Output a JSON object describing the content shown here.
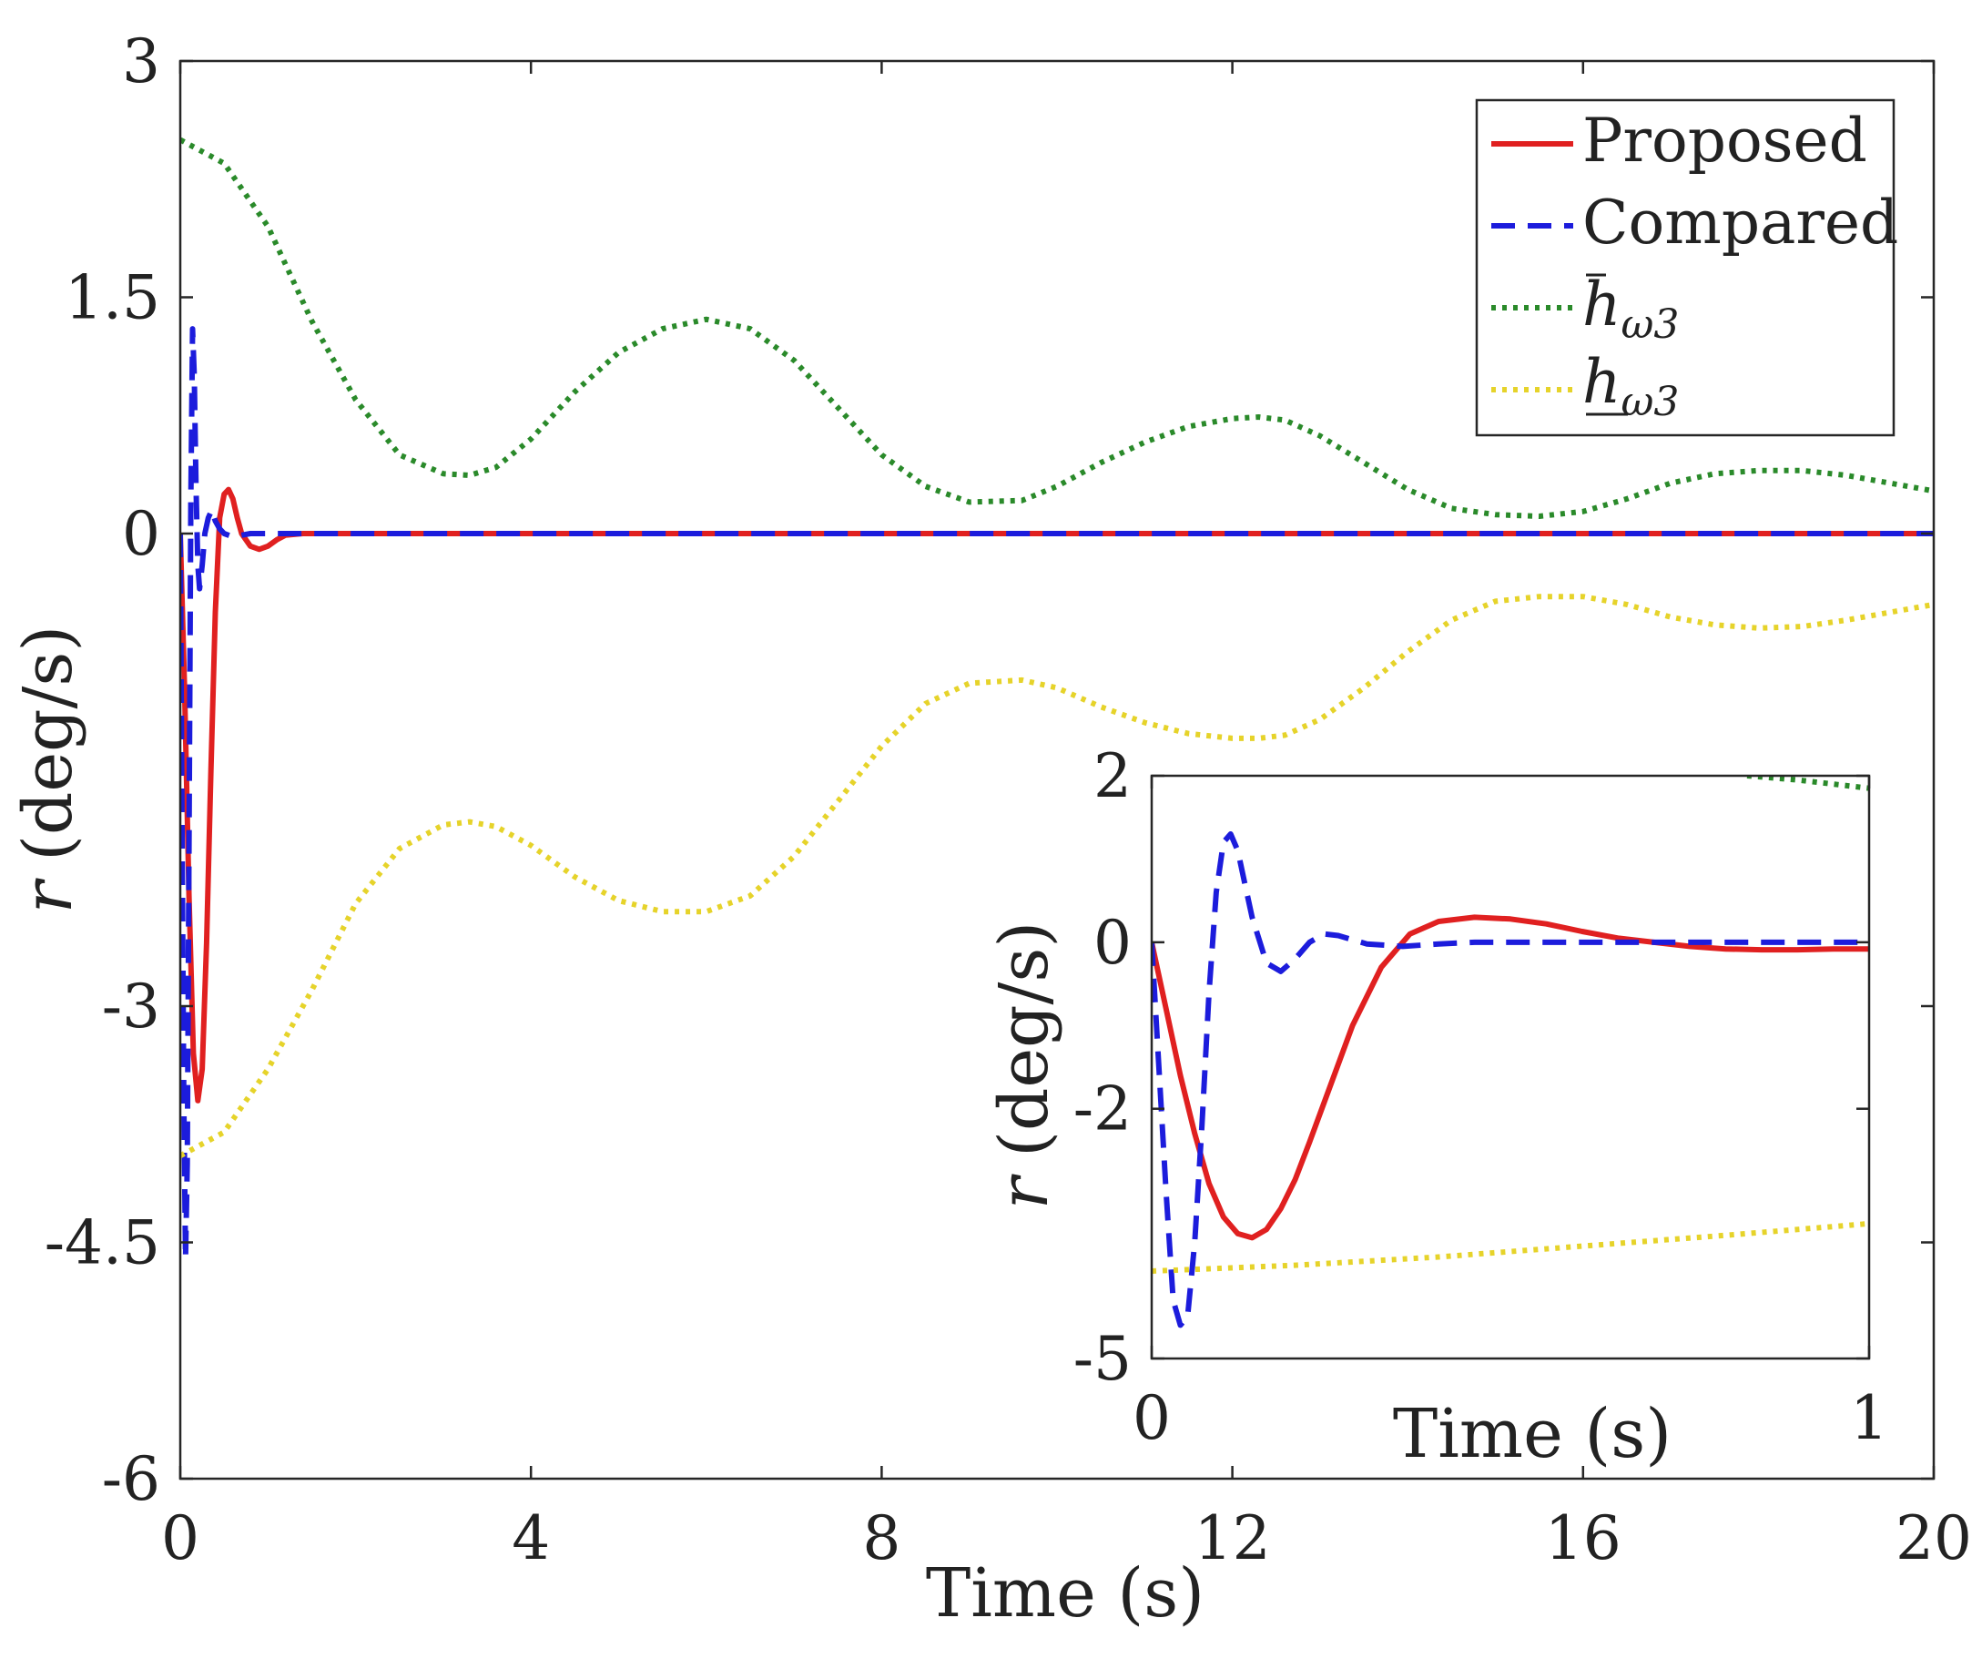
{
  "chart_data": [
    {
      "type": "line",
      "xlabel": "Time (s)",
      "ylabel": "r (deg/s)",
      "ylabel_var": "r",
      "ylabel_unit": "(deg/s)",
      "xlim": [
        0,
        20
      ],
      "ylim": [
        -6,
        3
      ],
      "xticks": [
        0,
        4,
        8,
        12,
        16,
        20
      ],
      "yticks": [
        3,
        1.5,
        0,
        -3,
        -4.5,
        -6
      ],
      "xtick_labels": [
        "0",
        "4",
        "8",
        "12",
        "16",
        "20"
      ],
      "ytick_labels": [
        "3",
        "1.5",
        "0",
        "-3",
        "-4.5",
        "-6"
      ],
      "grid": false,
      "legend_placement": "top-right",
      "legend": {
        "items": [
          {
            "label": "Proposed",
            "style": "solid",
            "color": "#e02020"
          },
          {
            "label": "Compared",
            "style": "dashed",
            "color": "#1c1cdc"
          },
          {
            "label": "h",
            "sub": "ω3",
            "mark": "bar",
            "style": "dotted",
            "color": "#2a8a2a"
          },
          {
            "label": "h",
            "sub": "ω3",
            "mark": "underline",
            "style": "dotted",
            "color": "#e6d32a"
          }
        ]
      },
      "series": [
        {
          "key": "proposed",
          "color": "#e02020",
          "style": "solid",
          "x": [
            0,
            0.05,
            0.1,
            0.15,
            0.2,
            0.25,
            0.3,
            0.35,
            0.4,
            0.45,
            0.5,
            0.55,
            0.6,
            0.65,
            0.7,
            0.8,
            0.9,
            1.0,
            1.1,
            1.2,
            1.4,
            1.8,
            2.5,
            20
          ],
          "y": [
            0,
            -1.0,
            -2.3,
            -3.3,
            -3.6,
            -3.4,
            -2.6,
            -1.5,
            -0.5,
            0.1,
            0.25,
            0.28,
            0.22,
            0.1,
            0.0,
            -0.08,
            -0.1,
            -0.08,
            -0.04,
            -0.01,
            0.0,
            0.0,
            0.0,
            0.0
          ]
        },
        {
          "key": "compared",
          "color": "#1c1cdc",
          "style": "dashed",
          "x": [
            0,
            0.02,
            0.04,
            0.06,
            0.08,
            0.1,
            0.12,
            0.14,
            0.16,
            0.18,
            0.2,
            0.22,
            0.25,
            0.28,
            0.32,
            0.36,
            0.4,
            0.45,
            0.5,
            0.6,
            0.8,
            1.0,
            20
          ],
          "y": [
            0,
            -1.8,
            -3.6,
            -4.6,
            -4.0,
            -2.0,
            0.2,
            1.3,
            1.0,
            0.3,
            -0.2,
            -0.35,
            -0.2,
            0.0,
            0.1,
            0.15,
            0.08,
            0.03,
            0.0,
            -0.02,
            0.0,
            0.0,
            0.0
          ]
        },
        {
          "key": "h_upper",
          "color": "#2a8a2a",
          "style": "dotted",
          "x": [
            0,
            0.5,
            1,
            1.5,
            2,
            2.5,
            3,
            3.3,
            3.6,
            4,
            4.5,
            5,
            5.5,
            6,
            6.5,
            7,
            7.5,
            8,
            8.5,
            9,
            9.6,
            10,
            10.5,
            11,
            11.5,
            12,
            12.3,
            12.6,
            13,
            13.5,
            14,
            14.5,
            15,
            15.5,
            16,
            16.5,
            17,
            17.5,
            18,
            18.5,
            19,
            19.5,
            20
          ],
          "y": [
            2.5,
            2.35,
            1.95,
            1.35,
            0.85,
            0.5,
            0.38,
            0.37,
            0.42,
            0.6,
            0.9,
            1.15,
            1.3,
            1.36,
            1.3,
            1.1,
            0.8,
            0.5,
            0.3,
            0.2,
            0.21,
            0.3,
            0.45,
            0.58,
            0.68,
            0.73,
            0.74,
            0.72,
            0.62,
            0.45,
            0.28,
            0.16,
            0.12,
            0.11,
            0.14,
            0.22,
            0.32,
            0.38,
            0.4,
            0.4,
            0.37,
            0.32,
            0.27
          ]
        },
        {
          "key": "h_lower",
          "color": "#e6d32a",
          "style": "dotted",
          "x": [
            0,
            0.5,
            1,
            1.5,
            2,
            2.5,
            3,
            3.3,
            3.6,
            4,
            4.5,
            5,
            5.5,
            6,
            6.5,
            7,
            7.5,
            8,
            8.5,
            9,
            9.6,
            10,
            10.5,
            11,
            11.5,
            12,
            12.3,
            12.6,
            13,
            13.5,
            14,
            14.5,
            15,
            15.5,
            16,
            16.5,
            17,
            17.5,
            18,
            18.5,
            19,
            19.5,
            20
          ],
          "y": [
            -3.95,
            -3.8,
            -3.4,
            -2.9,
            -2.35,
            -2.0,
            -1.85,
            -1.83,
            -1.86,
            -1.98,
            -2.18,
            -2.33,
            -2.4,
            -2.4,
            -2.3,
            -2.05,
            -1.7,
            -1.35,
            -1.08,
            -0.95,
            -0.93,
            -0.98,
            -1.1,
            -1.2,
            -1.27,
            -1.3,
            -1.3,
            -1.28,
            -1.18,
            -0.98,
            -0.75,
            -0.55,
            -0.43,
            -0.4,
            -0.4,
            -0.45,
            -0.53,
            -0.58,
            -0.6,
            -0.59,
            -0.55,
            -0.5,
            -0.45
          ]
        }
      ]
    },
    {
      "type": "line",
      "inset": true,
      "xlabel": "Time (s)",
      "ylabel": "r (deg/s)",
      "ylabel_var": "r",
      "ylabel_unit": "(deg/s)",
      "xlim": [
        0,
        1
      ],
      "ylim": [
        -5,
        2
      ],
      "xticks": [
        0,
        1
      ],
      "yticks": [
        2,
        0,
        -2,
        -5
      ],
      "xtick_labels": [
        "0",
        "1"
      ],
      "ytick_labels": [
        "2",
        "0",
        "-2",
        "-5"
      ],
      "grid": false,
      "series": [
        {
          "key": "proposed",
          "color": "#e02020",
          "style": "solid",
          "x": [
            0,
            0.02,
            0.04,
            0.06,
            0.08,
            0.1,
            0.12,
            0.14,
            0.16,
            0.18,
            0.2,
            0.22,
            0.25,
            0.28,
            0.32,
            0.36,
            0.4,
            0.45,
            0.5,
            0.55,
            0.6,
            0.65,
            0.7,
            0.75,
            0.8,
            0.85,
            0.9,
            0.95,
            1.0
          ],
          "y": [
            0,
            -0.8,
            -1.6,
            -2.3,
            -2.9,
            -3.3,
            -3.5,
            -3.55,
            -3.45,
            -3.2,
            -2.85,
            -2.4,
            -1.7,
            -1.0,
            -0.3,
            0.1,
            0.25,
            0.3,
            0.28,
            0.22,
            0.13,
            0.05,
            0.0,
            -0.05,
            -0.08,
            -0.09,
            -0.09,
            -0.08,
            -0.08
          ]
        },
        {
          "key": "compared",
          "color": "#1c1cdc",
          "style": "dashed",
          "x": [
            0,
            0.01,
            0.02,
            0.03,
            0.04,
            0.05,
            0.06,
            0.07,
            0.08,
            0.09,
            0.1,
            0.11,
            0.12,
            0.13,
            0.14,
            0.16,
            0.18,
            0.2,
            0.22,
            0.24,
            0.26,
            0.28,
            0.3,
            0.35,
            0.4,
            0.45,
            0.5,
            1.0
          ],
          "y": [
            0,
            -1.5,
            -3.0,
            -4.3,
            -4.6,
            -4.5,
            -3.6,
            -2.2,
            -0.6,
            0.6,
            1.2,
            1.3,
            1.1,
            0.7,
            0.3,
            -0.25,
            -0.35,
            -0.2,
            0.0,
            0.1,
            0.08,
            0.03,
            -0.02,
            -0.05,
            -0.02,
            0.0,
            0.0,
            0.0
          ]
        },
        {
          "key": "h_upper",
          "color": "#2a8a2a",
          "style": "dotted",
          "x": [
            0.83,
            0.9,
            1.0
          ],
          "y": [
            2.0,
            1.95,
            1.85
          ]
        },
        {
          "key": "h_lower",
          "color": "#e6d32a",
          "style": "dotted",
          "x": [
            0,
            0.2,
            0.4,
            0.6,
            0.8,
            1.0
          ],
          "y": [
            -3.95,
            -3.88,
            -3.78,
            -3.65,
            -3.52,
            -3.38
          ]
        }
      ]
    }
  ]
}
